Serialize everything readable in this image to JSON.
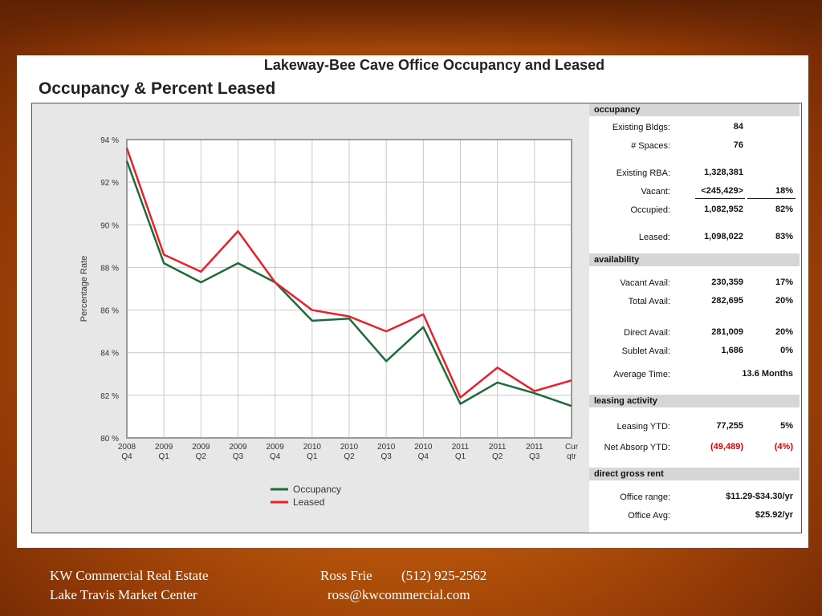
{
  "panel": {
    "main_title": "Lakeway-Bee Cave Office Occupancy and Leased",
    "sub_title": "Occupancy & Percent Leased"
  },
  "chart_data": {
    "type": "line",
    "ylabel": "Percentage Rate",
    "ylim": [
      80,
      94
    ],
    "yticks": [
      80,
      82,
      84,
      86,
      88,
      90,
      92,
      94
    ],
    "ytick_labels": [
      "80 %",
      "82 %",
      "84 %",
      "86 %",
      "88 %",
      "90 %",
      "92 %",
      "94 %"
    ],
    "categories": [
      [
        "2008",
        "Q4"
      ],
      [
        "2009",
        "Q1"
      ],
      [
        "2009",
        "Q2"
      ],
      [
        "2009",
        "Q3"
      ],
      [
        "2009",
        "Q4"
      ],
      [
        "2010",
        "Q1"
      ],
      [
        "2010",
        "Q2"
      ],
      [
        "2010",
        "Q3"
      ],
      [
        "2010",
        "Q4"
      ],
      [
        "2011",
        "Q1"
      ],
      [
        "2011",
        "Q2"
      ],
      [
        "2011",
        "Q3"
      ],
      [
        "Cur",
        "qtr"
      ]
    ],
    "series": [
      {
        "name": "Occupancy",
        "color": "#1e6b3a",
        "values": [
          93.0,
          88.2,
          87.3,
          88.2,
          87.3,
          85.5,
          85.6,
          83.6,
          85.2,
          81.6,
          82.6,
          82.1,
          81.5
        ]
      },
      {
        "name": "Leased",
        "color": "#e8202a",
        "values": [
          93.6,
          88.6,
          87.8,
          89.7,
          87.3,
          86.0,
          85.7,
          85.0,
          85.8,
          81.9,
          83.3,
          82.2,
          82.7
        ]
      }
    ],
    "grid": true,
    "legend": "bottom-center"
  },
  "stats": {
    "occupancy": {
      "header": "occupancy",
      "existing_bldgs": {
        "label": "Existing Bldgs:",
        "value": "84"
      },
      "spaces": {
        "label": "# Spaces:",
        "value": "76"
      },
      "existing_rba": {
        "label": "Existing RBA:",
        "value": "1,328,381"
      },
      "vacant": {
        "label": "Vacant:",
        "value": "<245,429>",
        "pct": "18%"
      },
      "occupied": {
        "label": "Occupied:",
        "value": "1,082,952",
        "pct": "82%"
      },
      "leased": {
        "label": "Leased:",
        "value": "1,098,022",
        "pct": "83%"
      }
    },
    "availability": {
      "header": "availability",
      "vacant_avail": {
        "label": "Vacant Avail:",
        "value": "230,359",
        "pct": "17%"
      },
      "total_avail": {
        "label": "Total Avail:",
        "value": "282,695",
        "pct": "20%"
      },
      "direct_avail": {
        "label": "Direct Avail:",
        "value": "281,009",
        "pct": "20%"
      },
      "sublet_avail": {
        "label": "Sublet Avail:",
        "value": "1,686",
        "pct": "0%"
      },
      "average_time": {
        "label": "Average Time:",
        "value": "13.6 Months"
      }
    },
    "leasing": {
      "header": "leasing activity",
      "leasing_ytd": {
        "label": "Leasing YTD:",
        "value": "77,255",
        "pct": "5%"
      },
      "net_absorp": {
        "label": "Net Absorp YTD:",
        "value": "(49,489)",
        "pct": "(4%)"
      }
    },
    "rent": {
      "header": "direct gross rent",
      "office_range": {
        "label": "Office range:",
        "value": "$11.29-$34.30/yr"
      },
      "office_avg": {
        "label": "Office Avg:",
        "value": "$25.92/yr"
      }
    }
  },
  "footer": {
    "company": "KW Commercial Real Estate",
    "center": "Lake Travis Market Center",
    "contact_name": "Ross Frie",
    "phone": "(512) 925-2562",
    "email": "ross@kwcommercial.com"
  }
}
